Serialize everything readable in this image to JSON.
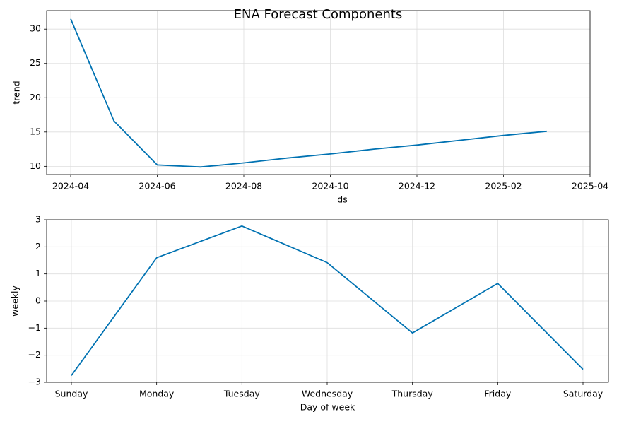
{
  "title": "ENA Forecast Components",
  "chart_data": [
    {
      "type": "line",
      "ylabel": "trend",
      "xlabel": "ds",
      "x": [
        "2024-04",
        "2024-05",
        "2024-06",
        "2024-07",
        "2024-08",
        "2024-09",
        "2024-10",
        "2024-11",
        "2024-12",
        "2025-01",
        "2025-02",
        "2025-03"
      ],
      "values": [
        31.5,
        16.6,
        10.2,
        9.9,
        10.5,
        11.2,
        11.8,
        12.5,
        13.1,
        13.8,
        14.5,
        15.1
      ],
      "color": "#0072B2",
      "xticks": [
        "2024-04",
        "2024-06",
        "2024-08",
        "2024-10",
        "2024-12",
        "2025-02",
        "2025-04"
      ],
      "ylim": [
        8.8,
        32.7
      ],
      "yticks": [
        10,
        15,
        20,
        25,
        30
      ],
      "grid": true
    },
    {
      "type": "category-line",
      "ylabel": "weekly",
      "xlabel": "Day of week",
      "categories": [
        "Sunday",
        "Monday",
        "Tuesday",
        "Wednesday",
        "Thursday",
        "Friday",
        "Saturday"
      ],
      "values": [
        -2.75,
        1.6,
        2.77,
        1.42,
        -1.18,
        0.65,
        -2.52
      ],
      "color": "#0072B2",
      "ylim": [
        -3,
        3
      ],
      "yticks": [
        {
          "value": -3,
          "label": "−3"
        },
        {
          "value": -2,
          "label": "−2"
        },
        {
          "value": -1,
          "label": "−1"
        },
        0,
        1,
        2,
        3
      ],
      "grid": true
    }
  ]
}
